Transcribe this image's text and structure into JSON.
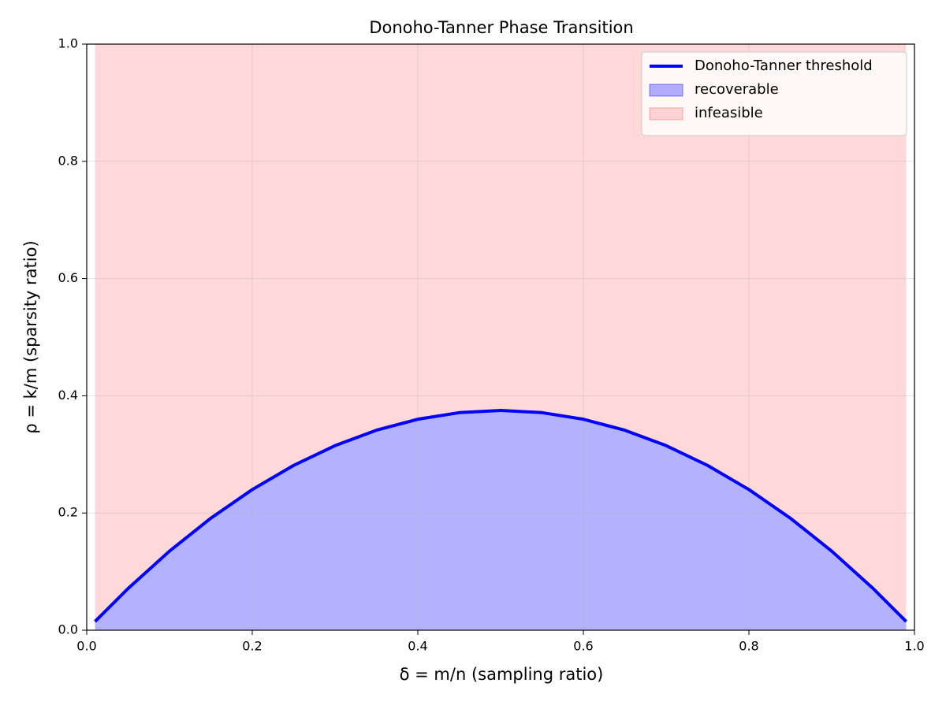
{
  "chart_data": {
    "type": "area",
    "title": "Donoho-Tanner Phase Transition",
    "x_label": "δ = m/n (sampling ratio)",
    "y_label": "ρ = k/m (sparsity ratio)",
    "x": [
      0.01,
      0.05,
      0.1,
      0.15,
      0.2,
      0.25,
      0.3,
      0.35,
      0.4,
      0.45,
      0.5,
      0.55,
      0.6,
      0.65,
      0.7,
      0.75,
      0.8,
      0.85,
      0.9,
      0.95,
      0.99
    ],
    "series": [
      {
        "name": "Donoho-Tanner threshold",
        "color": "#0000ff",
        "values": [
          0.01485,
          0.07125,
          0.135,
          0.19125,
          0.24,
          0.28125,
          0.315,
          0.34125,
          0.36,
          0.37125,
          0.375,
          0.37125,
          0.36,
          0.34125,
          0.315,
          0.28125,
          0.24,
          0.19125,
          0.135,
          0.07125,
          0.01485
        ]
      }
    ],
    "areas": [
      {
        "name": "recoverable",
        "color": "#0000ff",
        "opacity": 0.3
      },
      {
        "name": "infeasible",
        "color": "#ff0000",
        "opacity": 0.15
      }
    ],
    "xlim": [
      0,
      1
    ],
    "ylim": [
      0,
      1
    ],
    "xticks": [
      {
        "value": 0,
        "label": "0.0"
      },
      0.2,
      0.4,
      0.6,
      0.8,
      {
        "value": 1,
        "label": "1.0"
      }
    ],
    "yticks": [
      {
        "value": 0,
        "label": "0.0"
      },
      0.2,
      0.4,
      0.6,
      0.8,
      {
        "value": 1,
        "label": "1.0"
      }
    ],
    "grid": true,
    "legend": "upper right"
  }
}
